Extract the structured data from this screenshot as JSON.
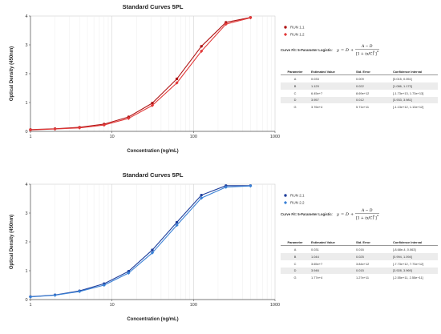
{
  "chart_data": [
    {
      "type": "line",
      "title": "Standard Curves 5PL",
      "xlabel": "Concentration (ng/mL)",
      "ylabel": "Optical Density (450nm)",
      "x_scale": "log",
      "xlim": [
        1,
        1000
      ],
      "ylim": [
        0,
        4
      ],
      "x_ticks": [
        "1",
        "10",
        "100",
        "1000"
      ],
      "y_ticks": [
        "0",
        "1",
        "2",
        "3",
        "4"
      ],
      "grid": true,
      "legend_position": "right",
      "colors": [
        "#b01515",
        "#e23a3a"
      ],
      "series": [
        {
          "name": "RUN 1.1",
          "x": [
            1,
            2,
            4,
            8,
            16,
            31.25,
            62.5,
            125,
            250,
            500
          ],
          "y": [
            0.06,
            0.09,
            0.14,
            0.25,
            0.5,
            0.98,
            1.82,
            2.95,
            3.78,
            3.95
          ]
        },
        {
          "name": "RUN 1.2",
          "x": [
            1,
            2,
            4,
            8,
            16,
            31.25,
            62.5,
            125,
            250,
            500
          ],
          "y": [
            0.05,
            0.08,
            0.12,
            0.22,
            0.45,
            0.9,
            1.68,
            2.78,
            3.72,
            3.94
          ]
        }
      ],
      "fit": {
        "label": "Curve Fit: 5-Parameter Logistic",
        "headers": [
          "Parameter",
          "Estimated Value",
          "Std. Error",
          "Confidence Interval"
        ],
        "rows": [
          [
            "A",
            "0.033",
            "0.009",
            "[0.015, 0.051]"
          ],
          [
            "B",
            "1.129",
            "0.022",
            "[1.086, 1.173]"
          ],
          [
            "C",
            "6.45e+7",
            "8.69e+12",
            "[-1.73e+13, 1.73e+13]"
          ],
          [
            "D",
            "3.957",
            "0.012",
            "[3.933, 3.981]"
          ],
          [
            "G",
            "3.76e+4",
            "5.71e+11",
            "[-1.13e+12, 1.13e+12]"
          ]
        ]
      }
    },
    {
      "type": "line",
      "title": "Standard Curves 5PL",
      "xlabel": "Concentration (ng/mL)",
      "ylabel": "Optical Density (450nm)",
      "x_scale": "log",
      "xlim": [
        1,
        1000
      ],
      "ylim": [
        0,
        4
      ],
      "x_ticks": [
        "1",
        "10",
        "100",
        "1000"
      ],
      "y_ticks": [
        "0",
        "1",
        "2",
        "3",
        "4"
      ],
      "grid": true,
      "legend_position": "right",
      "colors": [
        "#1f3f9c",
        "#3b82d6"
      ],
      "series": [
        {
          "name": "RUN 2.1",
          "x": [
            1,
            2,
            4,
            8,
            16,
            31.25,
            62.5,
            125,
            250,
            500
          ],
          "y": [
            0.1,
            0.16,
            0.3,
            0.55,
            0.98,
            1.72,
            2.68,
            3.62,
            3.95,
            3.95
          ]
        },
        {
          "name": "RUN 2.2",
          "x": [
            1,
            2,
            4,
            8,
            16,
            31.25,
            62.5,
            125,
            250,
            500
          ],
          "y": [
            0.09,
            0.15,
            0.28,
            0.5,
            0.92,
            1.62,
            2.58,
            3.52,
            3.9,
            3.94
          ]
        }
      ],
      "fit": {
        "label": "Curve Fit: 5-Parameter Logistic",
        "headers": [
          "Parameter",
          "Estimated Value",
          "Std. Error",
          "Confidence Interval"
        ],
        "rows": [
          [
            "A",
            "0.031",
            "0.016",
            "[-8.68e-4, 0.063]"
          ],
          [
            "B",
            "1.044",
            "0.025",
            "[0.994, 1.094]"
          ],
          [
            "C",
            "3.65e+7",
            "3.84e+12",
            "[-7.73e+12, 7.73e+12]"
          ],
          [
            "D",
            "3.946",
            "0.015",
            "[3.928, 3.969]"
          ],
          [
            "G",
            "1.77e+4",
            "1.27e+11",
            "[-2.55e+11, 2.55e+11]"
          ]
        ]
      }
    }
  ]
}
